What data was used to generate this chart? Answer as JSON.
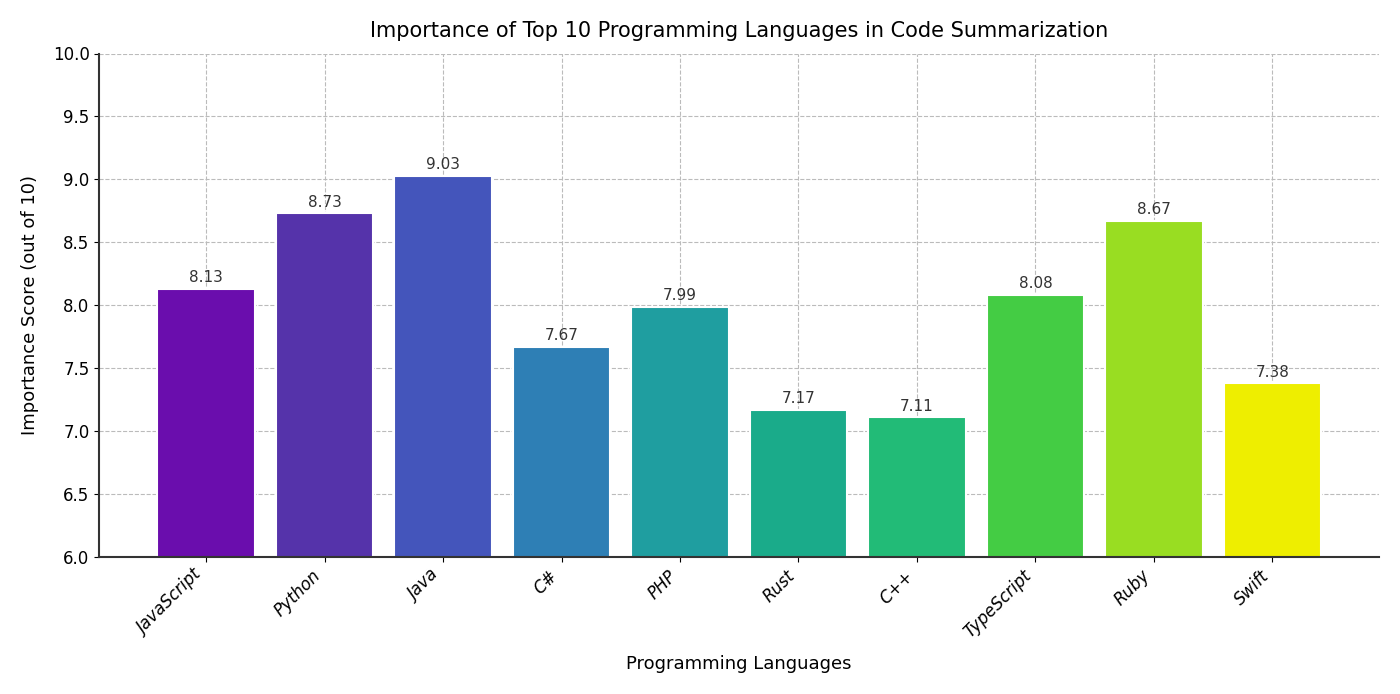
{
  "title": "Importance of Top 10 Programming Languages in Code Summarization",
  "xlabel": "Programming Languages",
  "ylabel": "Importance Score (out of 10)",
  "categories": [
    "JavaScript",
    "Python",
    "Java",
    "C#",
    "PHP",
    "Rust",
    "C++",
    "TypeScript",
    "Ruby",
    "Swift"
  ],
  "values": [
    8.13,
    8.73,
    9.03,
    7.67,
    7.99,
    7.17,
    7.11,
    8.08,
    8.67,
    7.38
  ],
  "bar_colors": [
    "#6a0dad",
    "#5533aa",
    "#4455bb",
    "#2e7fb5",
    "#1f9ea0",
    "#1aab8a",
    "#22bb77",
    "#44cc44",
    "#99dd22",
    "#eeee00"
  ],
  "ylim": [
    6.0,
    10.0
  ],
  "yticks": [
    6.0,
    6.5,
    7.0,
    7.5,
    8.0,
    8.5,
    9.0,
    9.5,
    10.0
  ],
  "grid_color": "#bbbbbb",
  "background_color": "#ffffff",
  "bar_edge_color": "#ffffff",
  "bar_width": 0.82,
  "title_fontsize": 15,
  "label_fontsize": 13,
  "tick_fontsize": 12,
  "annotation_fontsize": 11
}
